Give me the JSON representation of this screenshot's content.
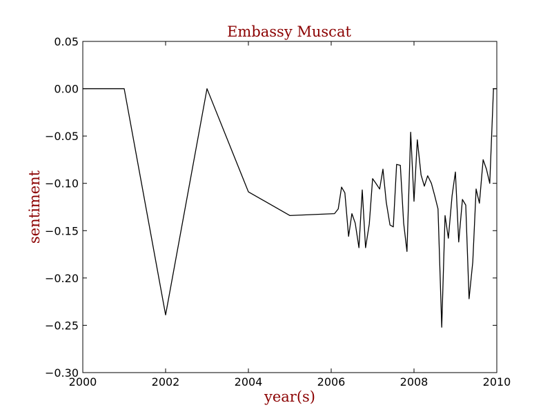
{
  "chart_data": {
    "type": "line",
    "title": "Embassy Muscat",
    "xlabel": "year(s)",
    "ylabel": "sentiment",
    "xlim": [
      2000,
      2010
    ],
    "ylim": [
      -0.3,
      0.05
    ],
    "xticks": [
      2000,
      2002,
      2004,
      2006,
      2008,
      2010
    ],
    "xtick_labels": [
      "2000",
      "2002",
      "2004",
      "2006",
      "2008",
      "2010"
    ],
    "yticks": [
      0.05,
      0.0,
      -0.05,
      -0.1,
      -0.15,
      -0.2,
      -0.25,
      -0.3
    ],
    "ytick_labels": [
      "0.05",
      "0.00",
      "−0.05",
      "−0.10",
      "−0.15",
      "−0.20",
      "−0.25",
      "−0.30"
    ],
    "grid": false,
    "colors": {
      "line": "#000000",
      "title": "#8b0000",
      "axis_labels": "#8b0000"
    },
    "series": [
      {
        "x": [
          2000.0,
          2001.0,
          2002.0,
          2003.0,
          2004.0,
          2005.0,
          2006.08,
          2006.17,
          2006.25,
          2006.33,
          2006.42,
          2006.5,
          2006.58,
          2006.67,
          2006.75,
          2006.83,
          2006.92,
          2007.0,
          2007.08,
          2007.17,
          2007.25,
          2007.33,
          2007.42,
          2007.5,
          2007.58,
          2007.67,
          2007.75,
          2007.83,
          2007.92,
          2008.0,
          2008.08,
          2008.17,
          2008.25,
          2008.33,
          2008.42,
          2008.5,
          2008.58,
          2008.67,
          2008.75,
          2008.83,
          2008.92,
          2009.0,
          2009.08,
          2009.17,
          2009.25,
          2009.33,
          2009.42,
          2009.5,
          2009.58,
          2009.67,
          2009.75,
          2009.83,
          2009.92,
          2010.0
        ],
        "y": [
          0.0,
          0.0,
          -0.239,
          0.0,
          -0.109,
          -0.134,
          -0.132,
          -0.127,
          -0.104,
          -0.11,
          -0.156,
          -0.132,
          -0.142,
          -0.168,
          -0.107,
          -0.168,
          -0.143,
          -0.095,
          -0.1,
          -0.106,
          -0.085,
          -0.12,
          -0.144,
          -0.146,
          -0.08,
          -0.081,
          -0.142,
          -0.172,
          -0.046,
          -0.119,
          -0.054,
          -0.091,
          -0.103,
          -0.092,
          -0.1,
          -0.113,
          -0.127,
          -0.252,
          -0.134,
          -0.158,
          -0.113,
          -0.088,
          -0.162,
          -0.117,
          -0.123,
          -0.222,
          -0.183,
          -0.106,
          -0.121,
          -0.075,
          -0.085,
          -0.1,
          0.0,
          0.0
        ]
      }
    ]
  }
}
